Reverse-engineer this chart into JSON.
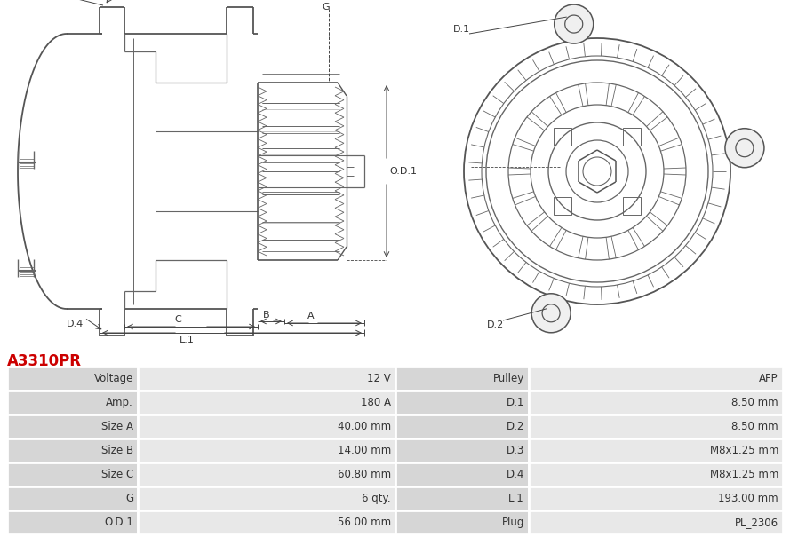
{
  "title": "A3310PR",
  "title_color": "#cc0000",
  "bg_color": "#ffffff",
  "left_col_labels": [
    "Voltage",
    "Amp.",
    "Size A",
    "Size B",
    "Size C",
    "G",
    "O.D.1"
  ],
  "left_col_values": [
    "12 V",
    "180 A",
    "40.00 mm",
    "14.00 mm",
    "60.80 mm",
    "6 qty.",
    "56.00 mm"
  ],
  "right_col_labels": [
    "Pulley",
    "D.1",
    "D.2",
    "D.3",
    "D.4",
    "L.1",
    "Plug"
  ],
  "right_col_values": [
    "AFP",
    "8.50 mm",
    "8.50 mm",
    "M8x1.25 mm",
    "M8x1.25 mm",
    "193.00 mm",
    "PL_2306"
  ],
  "font_size_title": 12,
  "font_size_table": 8.5
}
